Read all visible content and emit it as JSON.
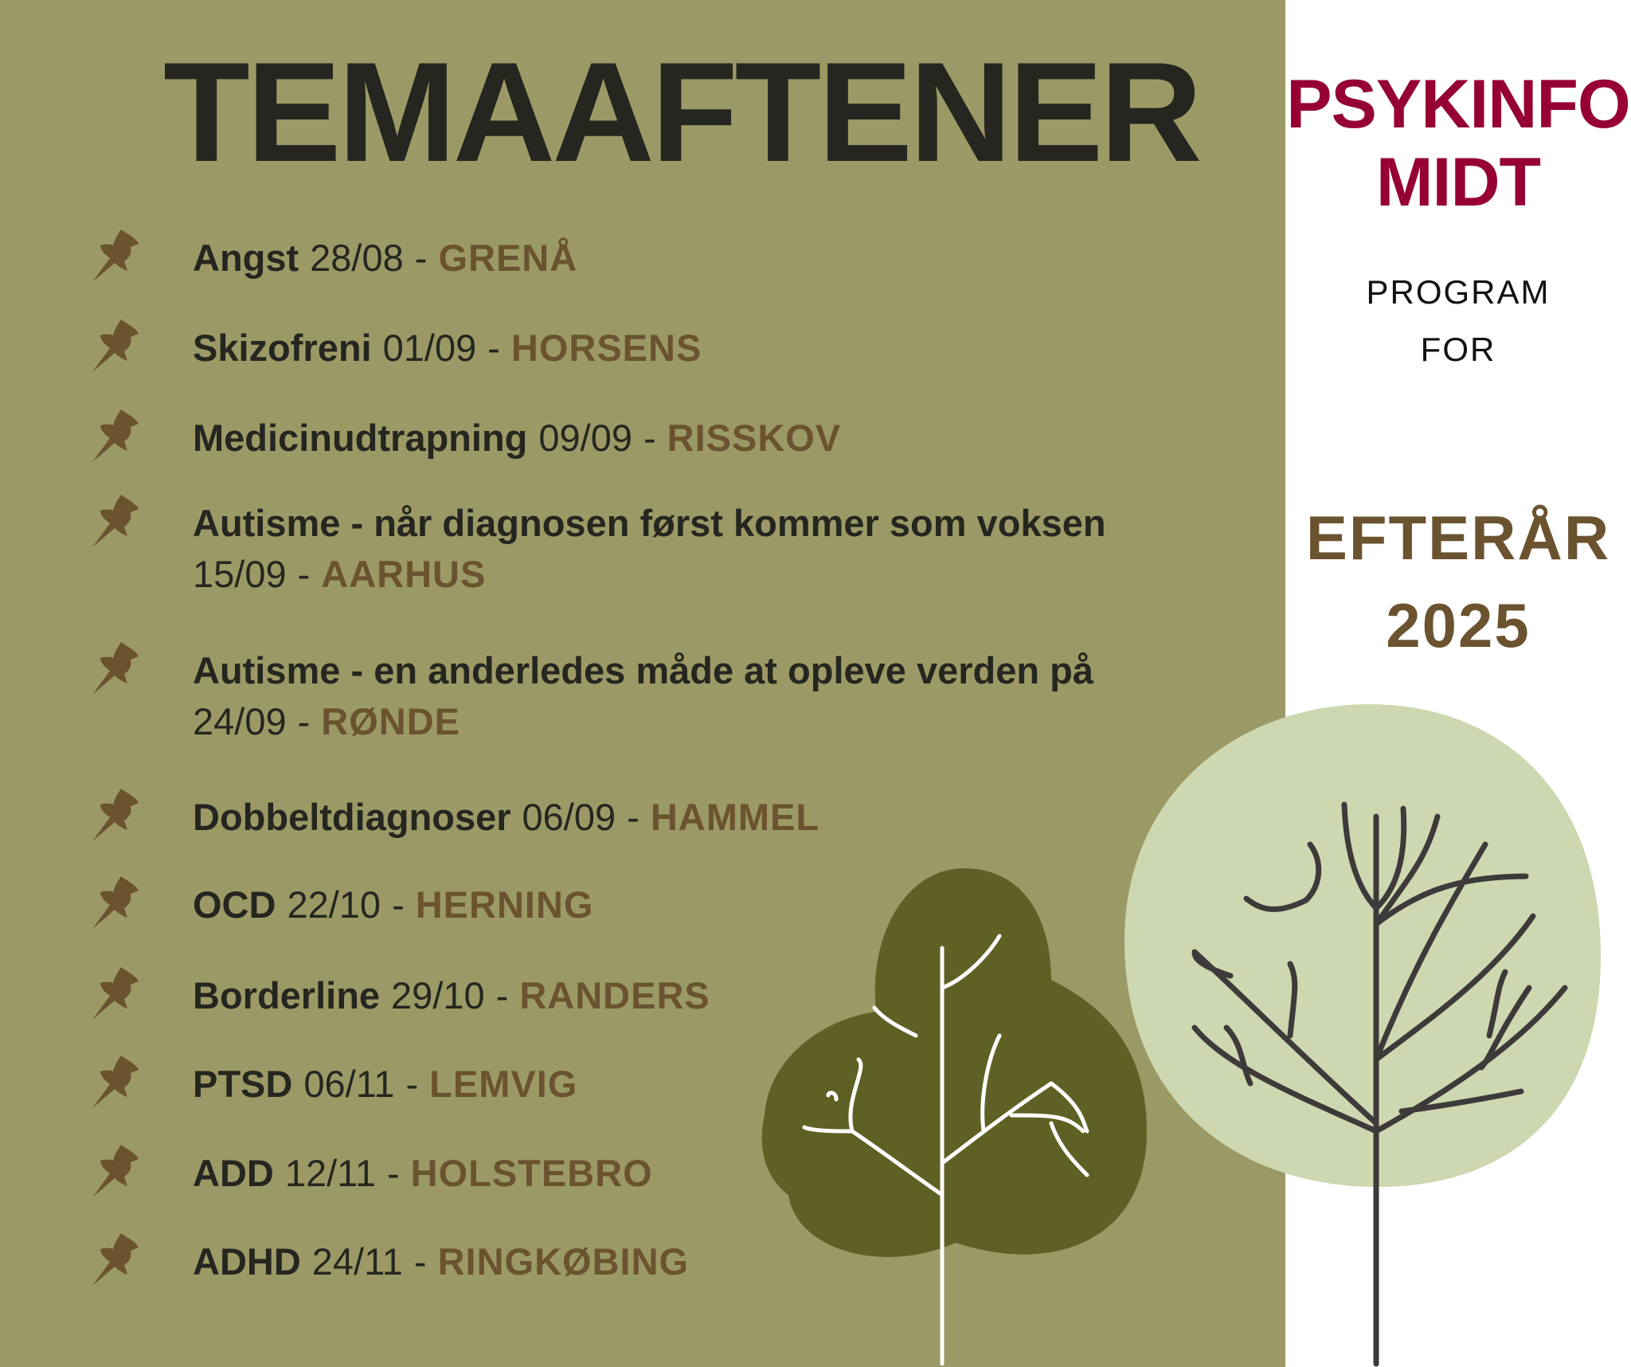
{
  "title": "TEMAAFTENER",
  "brand": {
    "line1": "PSYKINFO",
    "line2": "MIDT"
  },
  "subtitle": {
    "line1": "PROGRAM",
    "line2": "FOR"
  },
  "season": {
    "line1": "EFTERÅR",
    "line2": "2025"
  },
  "colors": {
    "background": "#9b9a66",
    "panel": "#ffffff",
    "text": "#25261f",
    "city": "#6b5330",
    "brand": "#960033",
    "dark_tree": "#5f6124",
    "light_tree": "#cdd8b0"
  },
  "bullet_icon": "pushpin-icon",
  "events": [
    {
      "topic": "Angst",
      "date": "28/08",
      "city": "GRENÅ"
    },
    {
      "topic": "Skizofreni",
      "date": "01/09",
      "city": "HORSENS"
    },
    {
      "topic": "Medicinudtrapning",
      "date": "09/09",
      "city": "RISSKOV"
    },
    {
      "topic": "Autisme - når diagnosen først kommer som voksen",
      "date": "15/09",
      "city": "AARHUS"
    },
    {
      "topic": "Autisme - en anderledes måde at opleve verden på",
      "date": "24/09",
      "city": "RØNDE"
    },
    {
      "topic": "Dobbeltdiagnoser",
      "date": "06/09",
      "city": "HAMMEL"
    },
    {
      "topic": "OCD",
      "date": "22/10",
      "city": "HERNING"
    },
    {
      "topic": "Borderline",
      "date": "29/10",
      "city": "RANDERS"
    },
    {
      "topic": "PTSD",
      "date": "06/11",
      "city": "LEMVIG"
    },
    {
      "topic": "ADD",
      "date": "12/11",
      "city": "HOLSTEBRO"
    },
    {
      "topic": "ADHD",
      "date": "24/11",
      "city": "RINGKØBING"
    }
  ]
}
